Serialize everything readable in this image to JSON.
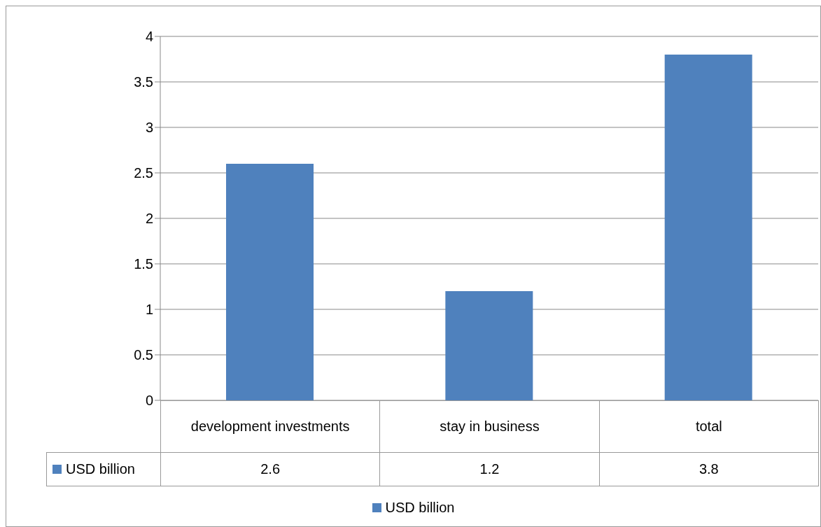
{
  "chart_data": {
    "type": "bar",
    "categories": [
      "development investments",
      "stay in business",
      "total"
    ],
    "series": [
      {
        "name": "USD billion",
        "color": "#4f81bd",
        "values": [
          2.6,
          1.2,
          3.8
        ]
      }
    ],
    "ylim": [
      0,
      4
    ],
    "yticks": [
      0,
      0.5,
      1,
      1.5,
      2,
      2.5,
      3,
      3.5,
      4
    ],
    "grid": "y",
    "legend": "bottom",
    "data_labels": true
  }
}
